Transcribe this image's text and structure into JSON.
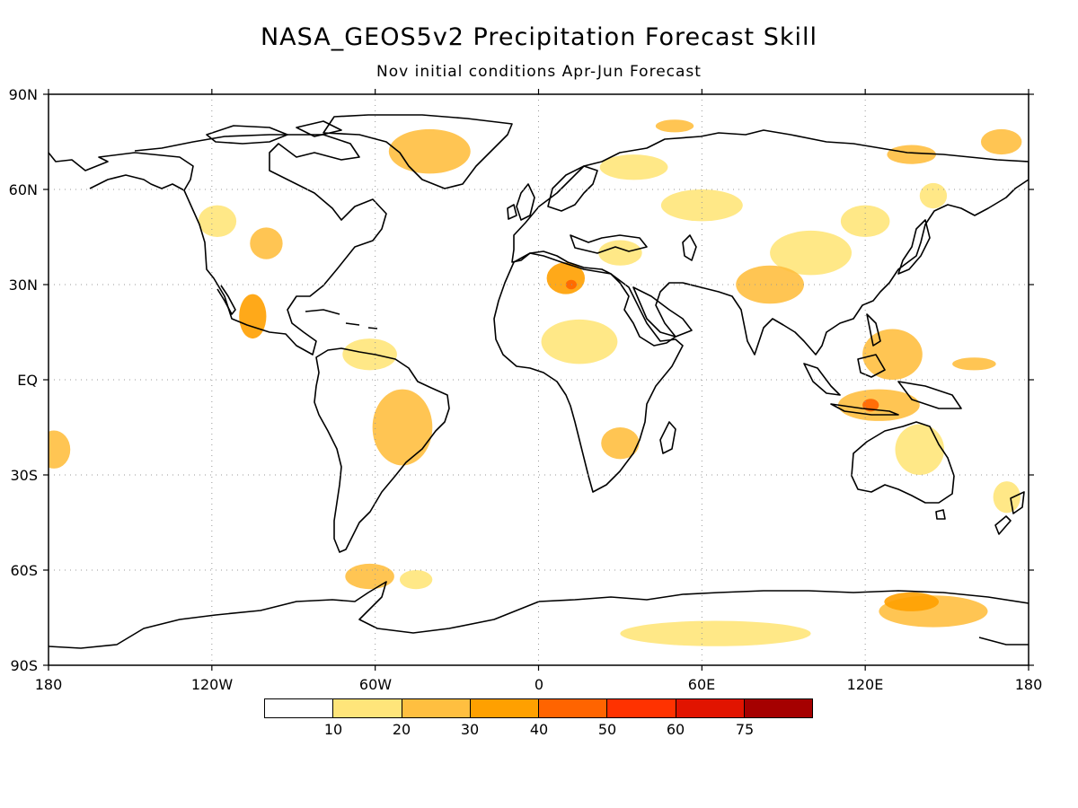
{
  "title": "NASA_GEOS5v2 Precipitation Forecast Skill",
  "subtitle": "Nov initial conditions   Apr-Jun Forecast",
  "map": {
    "projection": "cylindrical equidistant",
    "lon_range": [
      -180,
      180
    ],
    "lat_range": [
      -90,
      90
    ],
    "grid": true,
    "coastline_color": "#000000",
    "y_ticks": [
      "90N",
      "60N",
      "30N",
      "EQ",
      "30S",
      "60S",
      "90S"
    ],
    "x_ticks": [
      "180",
      "120W",
      "60W",
      "0",
      "60E",
      "120E",
      "180"
    ]
  },
  "colorbar": {
    "labels": [
      "10",
      "20",
      "30",
      "40",
      "50",
      "60",
      "75"
    ],
    "colors": [
      "#ffffff",
      "#ffe57a",
      "#ffbf40",
      "#ffa000",
      "#ff6400",
      "#ff3200",
      "#e11400",
      "#a50000"
    ]
  },
  "skill_regions": [
    {
      "lon": 170,
      "lat": 75,
      "w": 15,
      "h": 8,
      "level": 2
    },
    {
      "lon": 137,
      "lat": 71,
      "w": 18,
      "h": 6,
      "level": 2
    },
    {
      "lon": 120,
      "lat": 50,
      "w": 18,
      "h": 10,
      "level": 1
    },
    {
      "lon": 145,
      "lat": 58,
      "w": 10,
      "h": 8,
      "level": 1
    },
    {
      "lon": 100,
      "lat": 40,
      "w": 30,
      "h": 14,
      "level": 1
    },
    {
      "lon": 85,
      "lat": 30,
      "w": 25,
      "h": 12,
      "level": 2
    },
    {
      "lon": 60,
      "lat": 55,
      "w": 30,
      "h": 10,
      "level": 1
    },
    {
      "lon": 35,
      "lat": 67,
      "w": 25,
      "h": 8,
      "level": 1
    },
    {
      "lon": 50,
      "lat": 80,
      "w": 14,
      "h": 4,
      "level": 2
    },
    {
      "lon": 10,
      "lat": 32,
      "w": 14,
      "h": 10,
      "level": 3
    },
    {
      "lon": 12,
      "lat": 30,
      "w": 4,
      "h": 3,
      "level": 4
    },
    {
      "lon": 30,
      "lat": 40,
      "w": 16,
      "h": 8,
      "level": 1
    },
    {
      "lon": 15,
      "lat": 12,
      "w": 28,
      "h": 14,
      "level": 1
    },
    {
      "lon": 30,
      "lat": -20,
      "w": 14,
      "h": 10,
      "level": 2
    },
    {
      "lon": -40,
      "lat": 72,
      "w": 30,
      "h": 14,
      "level": 2
    },
    {
      "lon": -100,
      "lat": 43,
      "w": 12,
      "h": 10,
      "level": 2
    },
    {
      "lon": -105,
      "lat": 20,
      "w": 10,
      "h": 14,
      "level": 3
    },
    {
      "lon": -118,
      "lat": 50,
      "w": 14,
      "h": 10,
      "level": 1
    },
    {
      "lon": -62,
      "lat": 8,
      "w": 20,
      "h": 10,
      "level": 1
    },
    {
      "lon": -50,
      "lat": -15,
      "w": 22,
      "h": 24,
      "level": 2
    },
    {
      "lon": -178,
      "lat": -22,
      "w": 12,
      "h": 12,
      "level": 2
    },
    {
      "lon": 125,
      "lat": -8,
      "w": 30,
      "h": 10,
      "level": 2
    },
    {
      "lon": 122,
      "lat": -8,
      "w": 6,
      "h": 4,
      "level": 4
    },
    {
      "lon": 130,
      "lat": 8,
      "w": 22,
      "h": 16,
      "level": 2
    },
    {
      "lon": 160,
      "lat": 5,
      "w": 16,
      "h": 4,
      "level": 2
    },
    {
      "lon": 140,
      "lat": -22,
      "w": 18,
      "h": 16,
      "level": 1
    },
    {
      "lon": 172,
      "lat": -37,
      "w": 10,
      "h": 10,
      "level": 1
    },
    {
      "lon": -62,
      "lat": -62,
      "w": 18,
      "h": 8,
      "level": 2
    },
    {
      "lon": -45,
      "lat": -63,
      "w": 12,
      "h": 6,
      "level": 1
    },
    {
      "lon": 65,
      "lat": -80,
      "w": 70,
      "h": 8,
      "level": 1
    },
    {
      "lon": 145,
      "lat": -73,
      "w": 40,
      "h": 10,
      "level": 2
    },
    {
      "lon": 137,
      "lat": -70,
      "w": 20,
      "h": 6,
      "level": 3
    }
  ]
}
